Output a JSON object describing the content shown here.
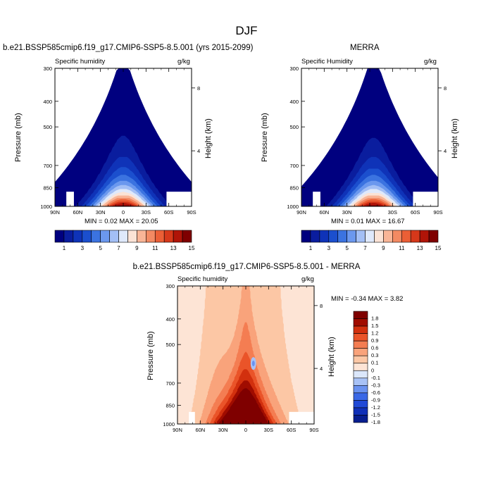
{
  "title": "DJF",
  "colors": {
    "abs_scale": [
      "#00007f",
      "#0a1d9e",
      "#0f33b8",
      "#1b4fce",
      "#3b73e0",
      "#6b98ee",
      "#a3bff5",
      "#dfe9fb",
      "#fbe3d6",
      "#f9b597",
      "#f38a63",
      "#eb5f36",
      "#d6381a",
      "#b01408",
      "#7f0000"
    ],
    "diff_scale": [
      "#081e8f",
      "#1030b8",
      "#2049d6",
      "#3a68e6",
      "#6a92f0",
      "#a8c2f6",
      "#dbe7fb",
      "#fde4d5",
      "#fcc7a5",
      "#f9a37b",
      "#f47d52",
      "#ea5429",
      "#d2300e",
      "#a00c00",
      "#7f0000"
    ]
  },
  "chart_data": [
    {
      "type": "heatmap",
      "title_left": "b.e21.BSSP585cmip6.f19_g17.CMIP6-SSP5-8.5.001 (yrs 2015-2099)",
      "subtitle_left": "Specific humidity",
      "subtitle_right": "g/kg",
      "xlabel": "",
      "ylabel": "Pressure (mb)",
      "ylabel_right": "Height (km)",
      "x_ticks": [
        "90N",
        "60N",
        "30N",
        "0",
        "30S",
        "60S",
        "90S"
      ],
      "x_range": [
        90,
        -90
      ],
      "y_ticks": [
        "300",
        "400",
        "500",
        "700",
        "850",
        "1000"
      ],
      "y_ticks_right": [
        "8",
        "4"
      ],
      "y_range": [
        1000,
        300
      ],
      "y_scale": "log",
      "min_label": "MIN =   0.02  MAX =  20.05",
      "min": 0.02,
      "max": 20.05,
      "colorbar_labels": [
        "1",
        "3",
        "5",
        "7",
        "9",
        "11",
        "13",
        "15"
      ],
      "colorbar_levels": [
        1,
        2,
        3,
        4,
        5,
        6,
        7,
        8,
        9,
        10,
        11,
        12,
        13,
        14,
        15
      ],
      "peak_lat": 0,
      "peak_value": 20.05
    },
    {
      "type": "heatmap",
      "title_center": "MERRA",
      "subtitle_left": "Specific Humidity",
      "subtitle_right": "g/kg",
      "xlabel": "",
      "ylabel": "Pressure (mb)",
      "ylabel_right": "Height (km)",
      "x_ticks": [
        "90N",
        "60N",
        "30N",
        "0",
        "30S",
        "60S",
        "90S"
      ],
      "x_range": [
        90,
        -90
      ],
      "y_ticks": [
        "300",
        "400",
        "500",
        "700",
        "850",
        "1000"
      ],
      "y_ticks_right": [
        "8",
        "4"
      ],
      "y_range": [
        1000,
        300
      ],
      "y_scale": "log",
      "min_label": "MIN =   0.01  MAX =  16.67",
      "min": 0.01,
      "max": 16.67,
      "colorbar_labels": [
        "1",
        "3",
        "5",
        "7",
        "9",
        "11",
        "13",
        "15"
      ],
      "colorbar_levels": [
        1,
        2,
        3,
        4,
        5,
        6,
        7,
        8,
        9,
        10,
        11,
        12,
        13,
        14,
        15
      ],
      "peak_lat": -5,
      "peak_value": 16.67
    },
    {
      "type": "heatmap",
      "title_center": "b.e21.BSSP585cmip6.f19_g17.CMIP6-SSP5-8.5.001 - MERRA",
      "subtitle_left": "Specific humidity",
      "subtitle_right": "g/kg",
      "xlabel": "",
      "ylabel": "Pressure (mb)",
      "ylabel_right": "Height (km)",
      "x_ticks": [
        "90N",
        "60N",
        "30N",
        "0",
        "30S",
        "60S",
        "90S"
      ],
      "x_range": [
        90,
        -90
      ],
      "y_ticks": [
        "300",
        "400",
        "500",
        "700",
        "850",
        "1000"
      ],
      "y_ticks_right": [
        "8",
        "4"
      ],
      "y_range": [
        1000,
        300
      ],
      "y_scale": "log",
      "min_label": "MIN =  -0.34  MAX =   3.82",
      "min": -0.34,
      "max": 3.82,
      "colorbar_labels": [
        "1.8",
        "1.5",
        "1.2",
        "0.9",
        "0.6",
        "0.3",
        "0.1",
        "0",
        "-0.1",
        "-0.3",
        "-0.6",
        "-0.9",
        "-1.2",
        "-1.5",
        "-1.8"
      ],
      "colorbar_levels": [
        1.8,
        1.5,
        1.2,
        0.9,
        0.6,
        0.3,
        0.1,
        0,
        -0.1,
        -0.3,
        -0.6,
        -0.9,
        -1.2,
        -1.5,
        -1.8
      ],
      "legend_position": "right"
    }
  ]
}
